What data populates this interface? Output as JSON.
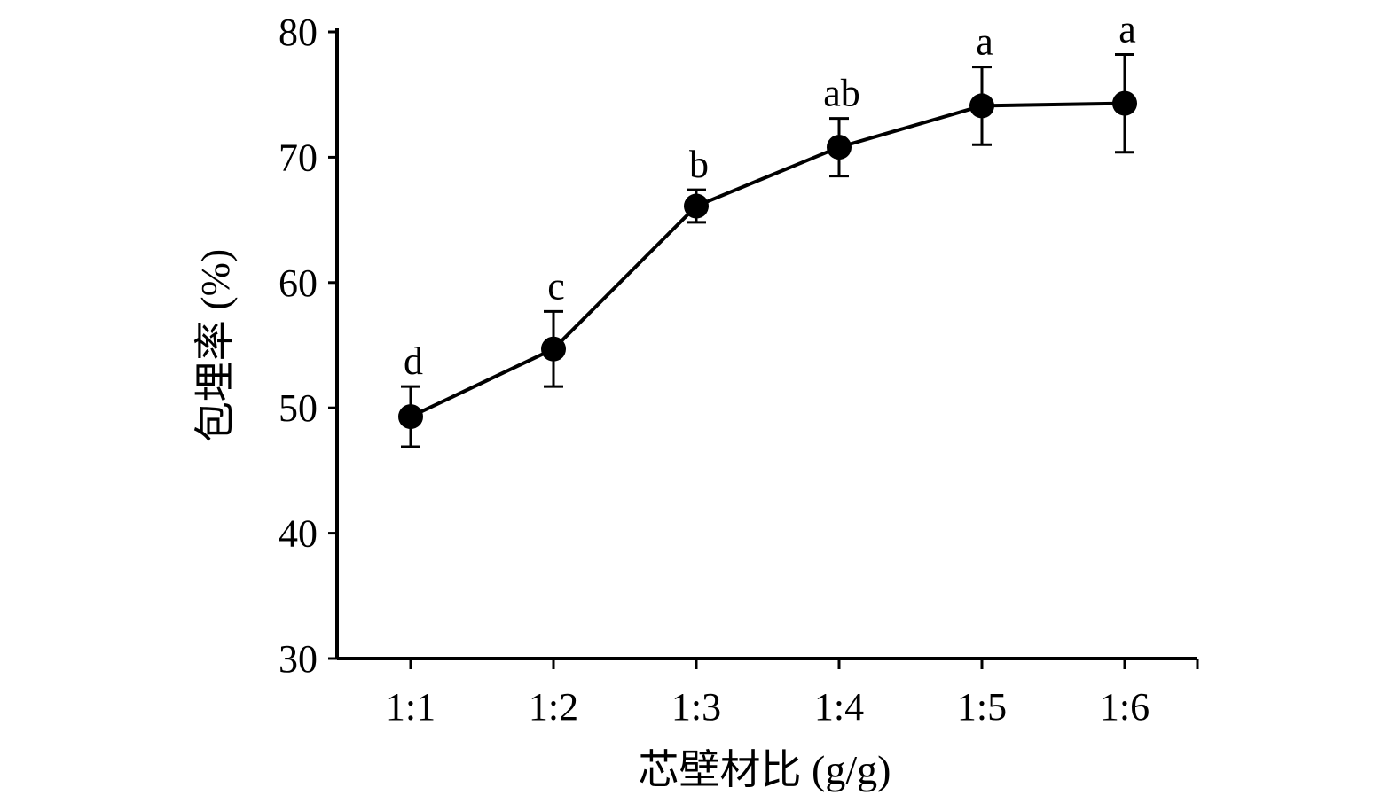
{
  "chart_data": {
    "type": "line",
    "xlabel": "芯壁材比 (g/g)",
    "ylabel": "包埋率 (%)",
    "categories": [
      "1:1",
      "1:2",
      "1:3",
      "1:4",
      "1:5",
      "1:6"
    ],
    "ylim": [
      30,
      80
    ],
    "yticks": [
      30,
      40,
      50,
      60,
      70,
      80
    ],
    "grid": false,
    "series": [
      {
        "values": [
          49.3,
          54.7,
          66.1,
          70.8,
          74.1,
          74.3
        ],
        "error": [
          2.4,
          3.0,
          1.3,
          2.3,
          3.1,
          3.9
        ],
        "labels": [
          "d",
          "c",
          "b",
          "ab",
          "a",
          "a"
        ]
      }
    ]
  }
}
